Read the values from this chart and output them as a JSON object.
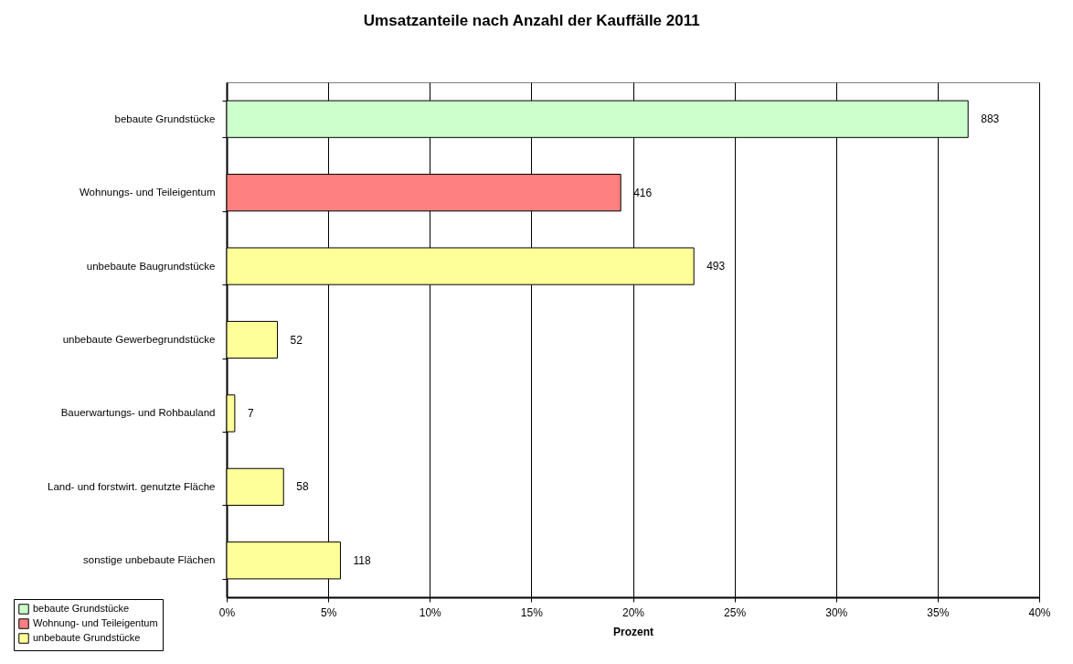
{
  "chart_data": {
    "type": "bar",
    "orientation": "horizontal",
    "title": "Umsatzanteile nach Anzahl der Kauffälle 2011",
    "xlabel": "Prozent",
    "categories": [
      "bebaute Grundstücke",
      "Wohnungs- und Teileigentum",
      "unbebaute Baugrundstücke",
      "unbebaute Gewerbegrundstücke",
      "Bauerwartungs- und Rohbauland",
      "Land- und forstwirt. genutzte Fläche",
      "sonstige unbebaute Flächen"
    ],
    "series": [
      {
        "name": "bebaute Grundstücke",
        "color": "#ccffcc",
        "values": [
          36.5,
          null,
          null,
          null,
          null,
          null,
          null
        ]
      },
      {
        "name": "Wohnung- und Teileigentum",
        "color": "#ff8080",
        "values": [
          null,
          19.4,
          null,
          null,
          null,
          null,
          null
        ]
      },
      {
        "name": "unbebaute Grundstücke",
        "color": "#ffff99",
        "values": [
          null,
          null,
          23.0,
          2.5,
          0.4,
          2.8,
          5.6
        ]
      }
    ],
    "annotations": [
      {
        "text": "883",
        "x": 36.5,
        "y": "bebaute Grundstücke"
      },
      {
        "text": "416",
        "x": 19.4,
        "y": "Wohnungs- und Teileigentum"
      },
      {
        "text": "493",
        "x": 23.0,
        "y": "unbebaute Baugrundstücke"
      },
      {
        "text": "52",
        "x": 2.5,
        "y": "unbebaute Gewerbegrundstücke"
      },
      {
        "text": "7",
        "x": 0.4,
        "y": "Bauerwartungs- und Rohbauland"
      },
      {
        "text": "58",
        "x": 2.8,
        "y": "Land- und forstwirt. genutzte Fläche"
      },
      {
        "text": "118",
        "x": 5.6,
        "y": "sonstige unbebaute Flächen"
      }
    ],
    "xlim": [
      0,
      40
    ],
    "xticks": [
      {
        "value": 0,
        "label": "0%"
      },
      {
        "value": 5,
        "label": "5%"
      },
      {
        "value": 10,
        "label": "10%"
      },
      {
        "value": 15,
        "label": "15%"
      },
      {
        "value": 20,
        "label": "20%"
      },
      {
        "value": 25,
        "label": "25%"
      },
      {
        "value": 30,
        "label": "30%"
      },
      {
        "value": 35,
        "label": "35%"
      },
      {
        "value": 40,
        "label": "40%"
      }
    ],
    "grid": "x",
    "legend": "bottom left"
  }
}
